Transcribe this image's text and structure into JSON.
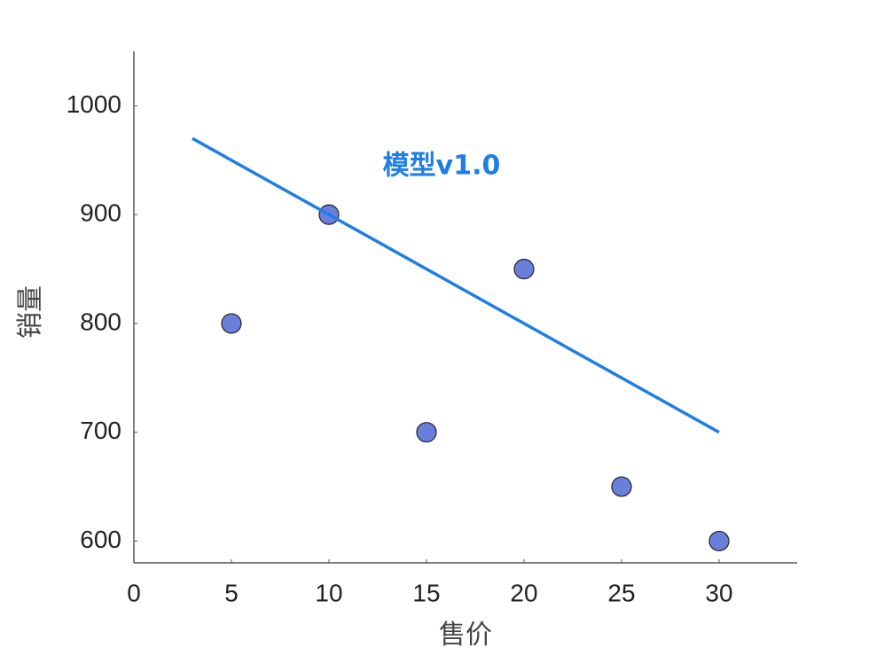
{
  "chart_data": {
    "type": "scatter",
    "xlabel": "售价",
    "ylabel": "销量",
    "annotation": "模型v1.0",
    "xlim": [
      0,
      34
    ],
    "ylim": [
      580,
      1050
    ],
    "xticks": [
      0,
      5,
      10,
      15,
      20,
      25,
      30
    ],
    "yticks": [
      600,
      700,
      800,
      900,
      1000
    ],
    "grid": false,
    "series": [
      {
        "type": "scatter",
        "color": "#6a7fdb",
        "x": [
          5,
          10,
          15,
          20,
          25,
          30
        ],
        "values": [
          800,
          900,
          700,
          850,
          650,
          600
        ]
      },
      {
        "type": "line",
        "color": "#1f7ee6",
        "x": [
          3,
          30
        ],
        "values": [
          970,
          700
        ]
      }
    ]
  }
}
